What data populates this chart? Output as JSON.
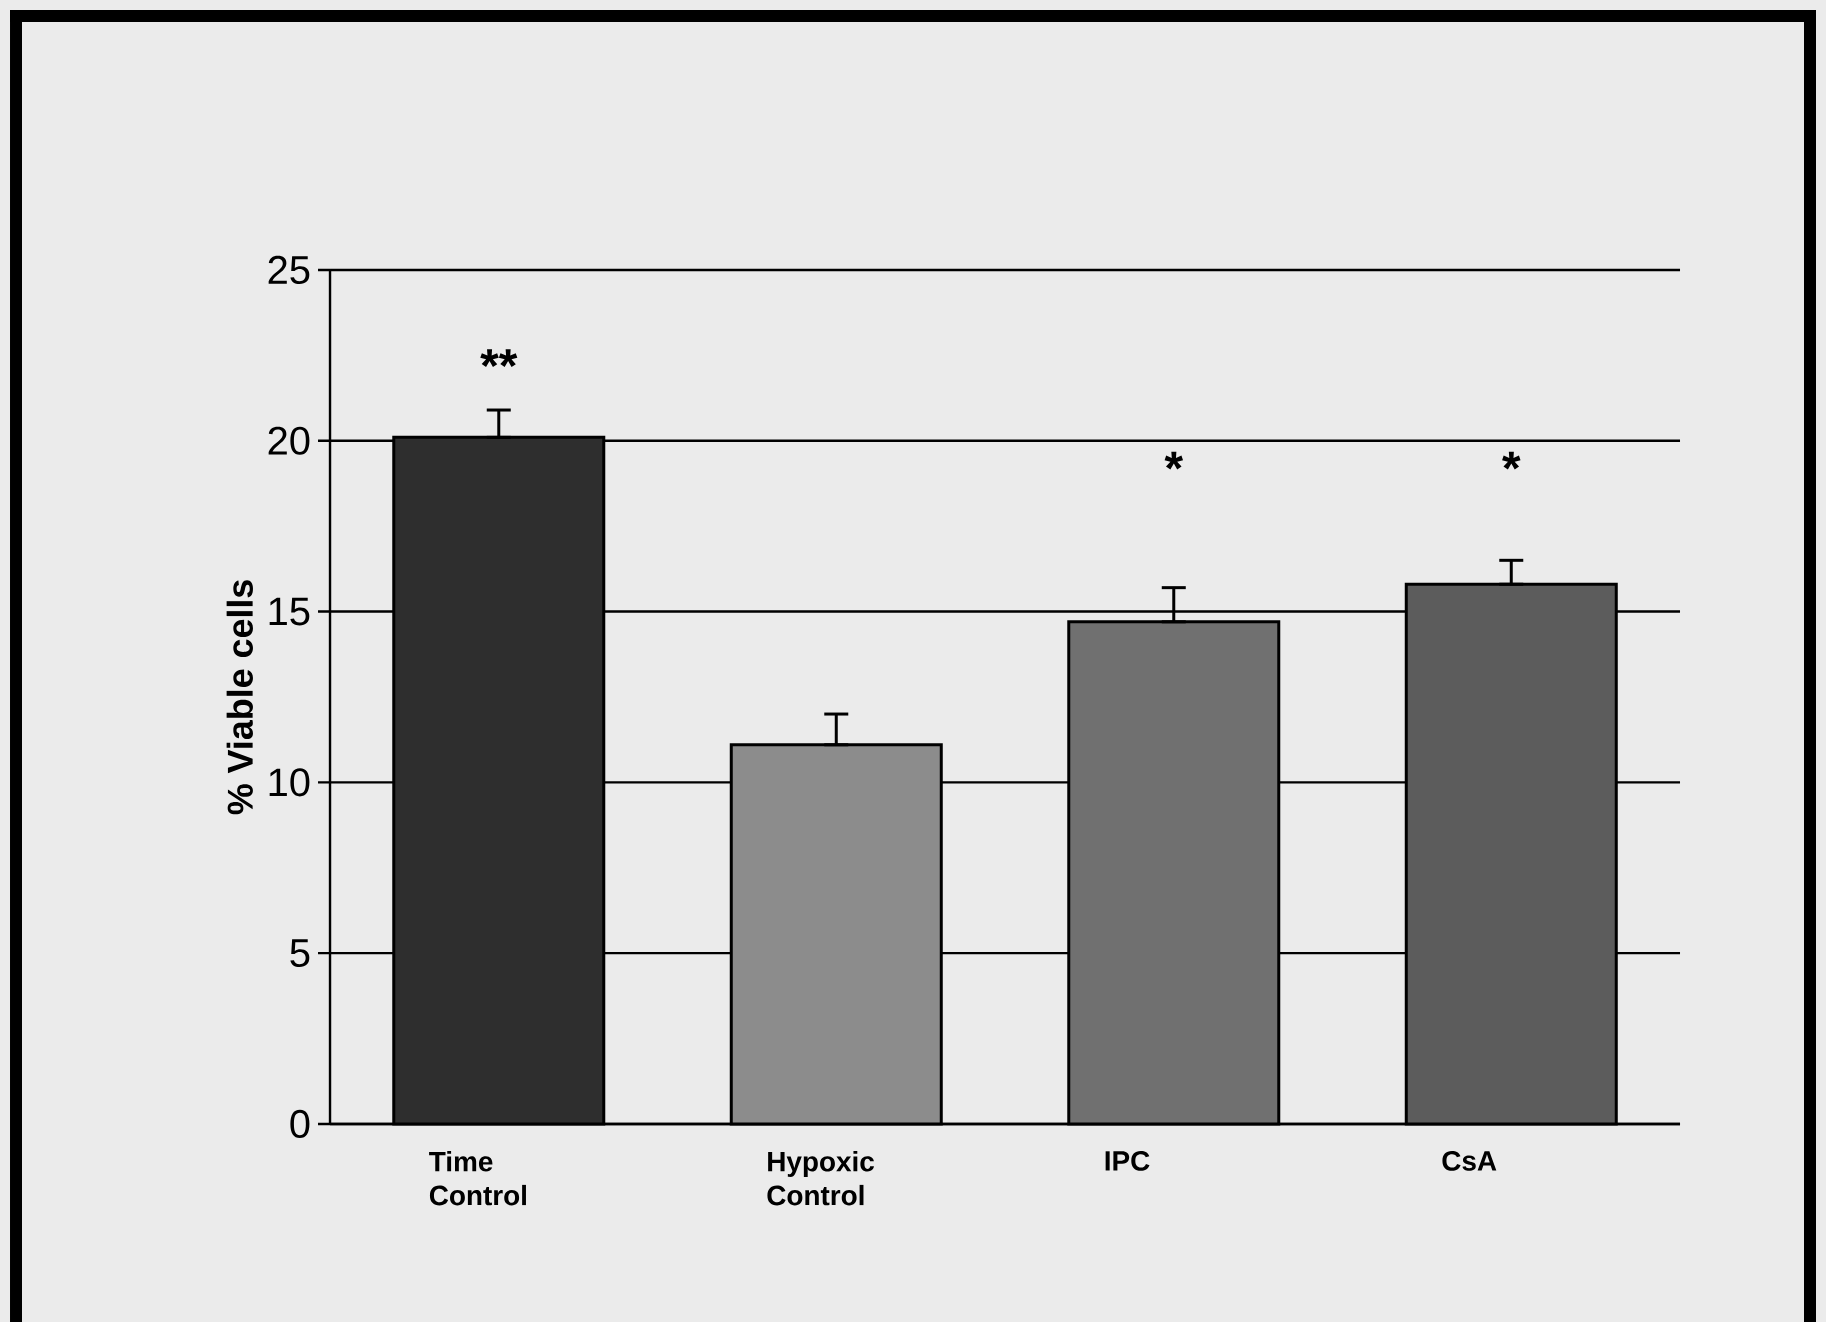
{
  "chart_data": {
    "type": "bar",
    "ylabel": "% Viable cells",
    "categories": [
      "Time Control",
      "Hypoxic Control",
      "IPC",
      "CsA"
    ],
    "values": [
      20.1,
      11.1,
      14.7,
      15.8
    ],
    "colors": [
      "#2e2e2e",
      "#8c8c8c",
      "#707070",
      "#5c5c5c"
    ],
    "errors": [
      [
        20.1,
        20.9
      ],
      [
        11.1,
        12.0
      ],
      [
        14.7,
        15.7
      ],
      [
        15.8,
        16.5
      ]
    ],
    "ylim": [
      0,
      25
    ],
    "yticks": [
      0,
      5,
      10,
      15,
      20,
      25
    ],
    "grid": "y",
    "annotations": [
      "**",
      "*",
      "*"
    ]
  }
}
